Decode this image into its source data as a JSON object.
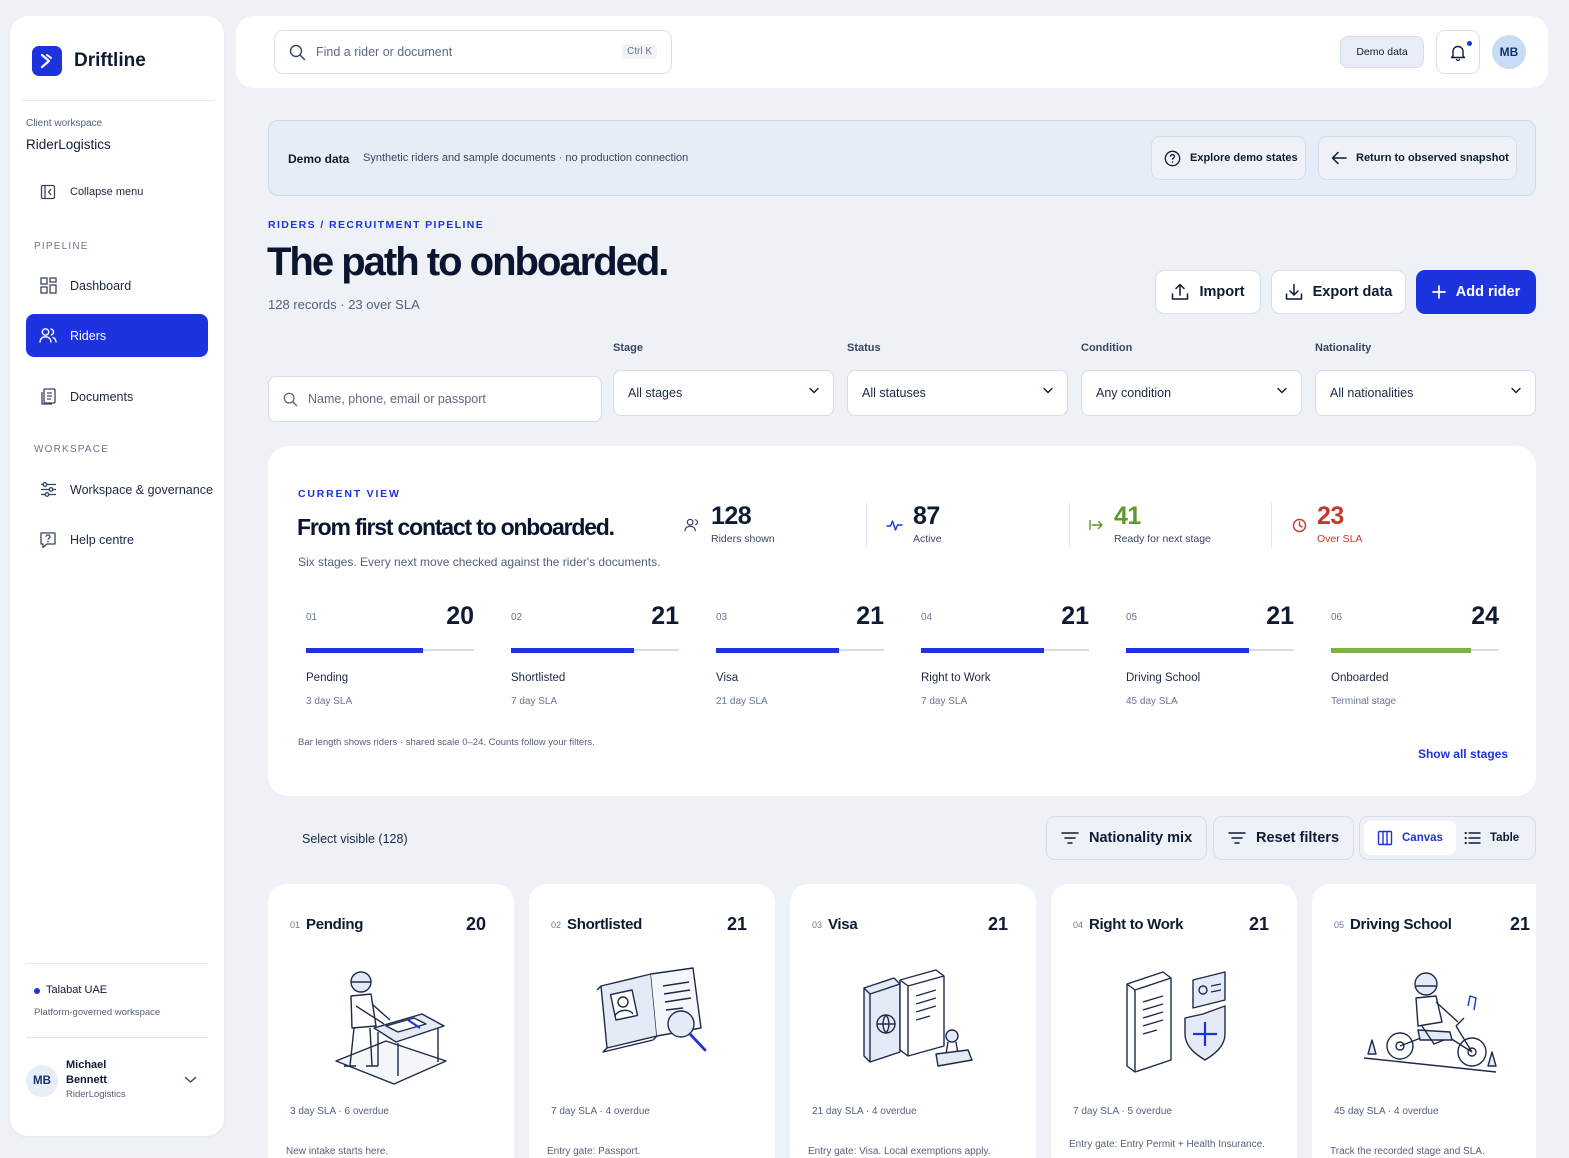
{
  "app": {
    "name": "Driftline"
  },
  "sidebar": {
    "workspace_label": "Client workspace",
    "workspace_name": "RiderLogistics",
    "collapse_label": "Collapse menu",
    "pipeline_heading": "PIPELINE",
    "items": [
      {
        "label": "Dashboard",
        "icon": "grid-icon"
      },
      {
        "label": "Riders",
        "icon": "users-icon",
        "active": true
      },
      {
        "label": "Documents",
        "icon": "documents-icon"
      }
    ],
    "workspace_heading": "WORKSPACE",
    "workspace_items": [
      {
        "label": "Workspace & governance",
        "icon": "sliders-icon"
      },
      {
        "label": "Help centre",
        "icon": "help-icon"
      }
    ],
    "tenant": {
      "name": "Talabat UAE",
      "note": "Platform-governed workspace"
    },
    "user": {
      "initials": "MB",
      "first": "Michael",
      "last": "Bennett",
      "org": "RiderLogistics"
    }
  },
  "topbar": {
    "search_placeholder": "Find a rider or document",
    "shortcut": "Ctrl K",
    "demo_badge": "Demo data",
    "avatar_initials": "MB"
  },
  "banner": {
    "title": "Demo data",
    "text": "Synthetic riders and sample documents · no production connection",
    "explore_label": "Explore demo states",
    "return_label": "Return to observed snapshot"
  },
  "page": {
    "breadcrumb": "RIDERS / RECRUITMENT PIPELINE",
    "title": "The path to onboarded.",
    "subtitle": "128 records · 23 over SLA",
    "import_label": "Import",
    "export_label": "Export data",
    "add_label": "Add rider"
  },
  "filters": {
    "search_placeholder": "Name, phone, email or passport",
    "stage": {
      "label": "Stage",
      "value": "All stages"
    },
    "status": {
      "label": "Status",
      "value": "All statuses"
    },
    "condition": {
      "label": "Condition",
      "value": "Any condition"
    },
    "nationality": {
      "label": "Nationality",
      "value": "All nationalities"
    }
  },
  "summary": {
    "eyebrow": "CURRENT VIEW",
    "title": "From first contact to onboarded.",
    "subtitle": "Six stages. Every next move checked against the rider's documents.",
    "stats": [
      {
        "value": "128",
        "label": "Riders shown",
        "color": "#0f1a33",
        "icon": "users-icon"
      },
      {
        "value": "87",
        "label": "Active",
        "color": "#0f1a33",
        "icon": "pulse-icon"
      },
      {
        "value": "41",
        "label": "Ready for next stage",
        "color": "#5e9a2b",
        "icon": "arrow-right-bar-icon"
      },
      {
        "value": "23",
        "label": "Over SLA",
        "color": "#c0392b",
        "icon": "clock-icon"
      }
    ],
    "stages": [
      {
        "index": "01",
        "name": "Pending",
        "sla": "3 day SLA",
        "count": 20,
        "color": "#1d33e0"
      },
      {
        "index": "02",
        "name": "Shortlisted",
        "sla": "7 day SLA",
        "count": 21,
        "color": "#1d33e0"
      },
      {
        "index": "03",
        "name": "Visa",
        "sla": "21 day SLA",
        "count": 21,
        "color": "#1d33e0"
      },
      {
        "index": "04",
        "name": "Right to Work",
        "sla": "7 day SLA",
        "count": 21,
        "color": "#1d33e0"
      },
      {
        "index": "05",
        "name": "Driving School",
        "sla": "45 day SLA",
        "count": 21,
        "color": "#1d33e0"
      },
      {
        "index": "06",
        "name": "Onboarded",
        "sla": "Terminal stage",
        "count": 24,
        "color": "#7cb342"
      }
    ],
    "scale_max": 24,
    "footnote": "Bar length shows riders · shared scale 0–24. Counts follow your filters.",
    "show_all": "Show all stages"
  },
  "toolbar": {
    "select_visible": "Select visible (128)",
    "nationality_mix": "Nationality mix",
    "reset_filters": "Reset filters",
    "view_canvas": "Canvas",
    "view_table": "Table"
  },
  "cards": [
    {
      "index": "01",
      "title": "Pending",
      "count": "20",
      "sla": "3 day SLA · 6 overdue",
      "desc": "New intake starts here.",
      "illustration": "rider-desk-icon"
    },
    {
      "index": "02",
      "title": "Shortlisted",
      "count": "21",
      "sla": "7 day SLA · 4 overdue",
      "desc": "Entry gate: Passport.",
      "illustration": "passport-magnifier-icon"
    },
    {
      "index": "03",
      "title": "Visa",
      "count": "21",
      "sla": "21 day SLA · 4 overdue",
      "desc": "Entry gate: Visa. Local exemptions apply.",
      "illustration": "visa-stamp-icon"
    },
    {
      "index": "04",
      "title": "Right to Work",
      "count": "21",
      "sla": "7 day SLA · 5 overdue",
      "desc": "Entry gate: Entry Permit + Health Insurance.",
      "illustration": "permit-shield-icon"
    },
    {
      "index": "05",
      "title": "Driving School",
      "count": "21",
      "sla": "45 day SLA · 4 overdue",
      "desc": "Track the recorded stage and SLA.",
      "illustration": "scooter-rider-icon"
    }
  ]
}
